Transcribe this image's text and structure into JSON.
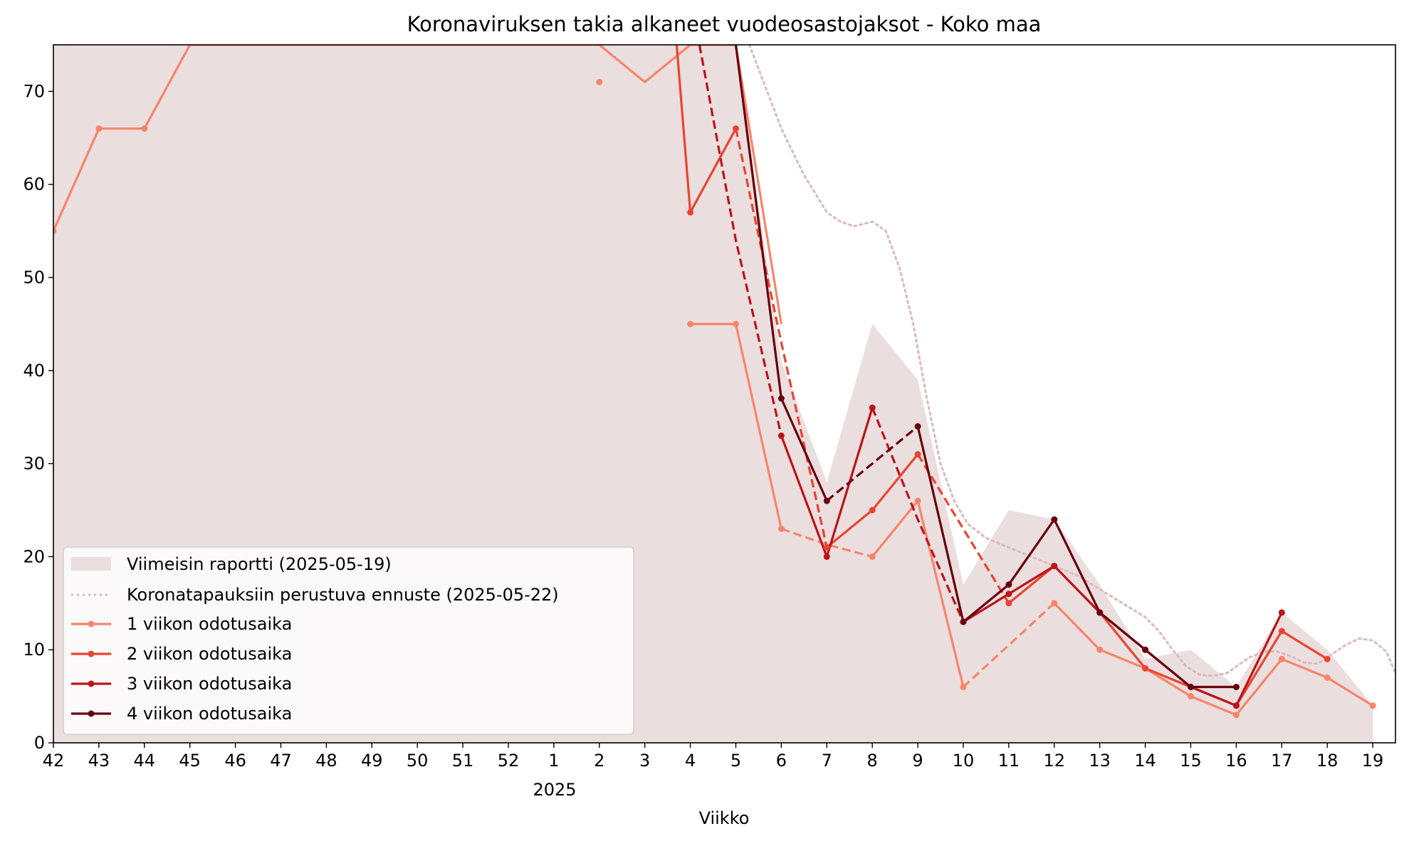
{
  "chart_data": {
    "type": "line",
    "title": "Koronaviruksen takia alkaneet vuodeosastojaksot - Koko maa",
    "xlabel": "Viikko",
    "ylabel": "",
    "x_ticks": [
      "42",
      "43",
      "44",
      "45",
      "46",
      "47",
      "48",
      "49",
      "50",
      "51",
      "52",
      "1",
      "2",
      "3",
      "4",
      "5",
      "6",
      "7",
      "8",
      "9",
      "10",
      "11",
      "12",
      "13",
      "14",
      "15",
      "16",
      "17",
      "18",
      "19"
    ],
    "x_year_label": "2025",
    "y_ticks": [
      0,
      10,
      20,
      30,
      40,
      50,
      60,
      70
    ],
    "xlim": [
      0,
      29.5
    ],
    "ylim": [
      0,
      75
    ],
    "grid": false,
    "legend_position": "lower-left",
    "report_area": {
      "name": "Viimeisin raportti (2025-05-19)",
      "color": "#ebdedf",
      "x": [
        0,
        1,
        2,
        3,
        4,
        5,
        6,
        7,
        8,
        9,
        10,
        11,
        12,
        13,
        14,
        15,
        16,
        17,
        18,
        19,
        20,
        21,
        22,
        23,
        24,
        25,
        26,
        27,
        28,
        29
      ],
      "values": [
        75,
        75,
        75,
        75,
        75,
        75,
        75,
        75,
        75,
        75,
        75,
        75,
        75,
        75,
        75,
        75,
        41,
        28,
        45,
        39,
        17,
        25,
        24,
        17,
        9,
        10,
        6,
        14,
        10,
        4
      ]
    },
    "forecast": {
      "name": "Koronatapauksiin perustuva ennuste (2025-05-22)",
      "color": "#dbb9bc",
      "x": [
        15.3,
        16,
        16.5,
        17,
        17.3,
        17.6,
        18,
        18.3,
        18.6,
        18.9,
        19.2,
        19.5,
        19.8,
        20.1,
        20.5,
        21,
        21.5,
        22,
        22.5,
        23,
        23.5,
        24,
        24.3,
        24.6,
        24.9,
        25.2,
        25.5,
        25.8,
        26,
        26.3,
        26.6,
        26.9,
        27.2,
        27.5,
        27.8,
        28.1,
        28.4,
        28.7,
        29,
        29.3,
        29.5
      ],
      "values": [
        75,
        66,
        61,
        57,
        56,
        55.5,
        56,
        55,
        51,
        45,
        37,
        30,
        26,
        23.5,
        22,
        21,
        20,
        19,
        18,
        16.5,
        15,
        13.5,
        12,
        10,
        8.2,
        7.3,
        7.2,
        7.5,
        8.2,
        9.2,
        9.8,
        9.8,
        9.3,
        8.6,
        8.5,
        9.5,
        10.5,
        11.2,
        11,
        9.8,
        7.5
      ]
    },
    "series": [
      {
        "name": "1 viikon odotusaika",
        "color": "#f7856a",
        "segments": [
          {
            "style": "solid",
            "x": [
              0,
              1,
              2,
              3,
              12,
              13,
              14,
              15,
              16
            ],
            "values": [
              55,
              66,
              66,
              75,
              75,
              71,
              75,
              75,
              45
            ]
          },
          {
            "style": "solid",
            "x": [
              14,
              15,
              16
            ],
            "values": [
              45,
              45,
              23
            ]
          },
          {
            "style": "dashed",
            "x": [
              16,
              17,
              18
            ],
            "values": [
              23,
              21.3,
              20
            ]
          },
          {
            "style": "solid",
            "x": [
              18,
              19,
              20
            ],
            "values": [
              20,
              26,
              6
            ]
          },
          {
            "style": "dashed",
            "x": [
              20,
              21,
              22
            ],
            "values": [
              6,
              10.5,
              15
            ]
          },
          {
            "style": "solid",
            "x": [
              22,
              23,
              24,
              25,
              26,
              27,
              28,
              29
            ],
            "values": [
              15,
              10,
              8,
              5,
              3,
              9,
              7,
              4
            ]
          }
        ],
        "markers_x": [
          0,
          1,
          2,
          12,
          14,
          15,
          16,
          18,
          19,
          20,
          22,
          23,
          24,
          25,
          26,
          27,
          28,
          29
        ],
        "markers_values": [
          55,
          66,
          66,
          71,
          45,
          45,
          23,
          20,
          26,
          6,
          15,
          10,
          8,
          5,
          3,
          9,
          7,
          4
        ]
      },
      {
        "name": "2 viikon odotusaika",
        "color": "#ea4430",
        "segments": [
          {
            "style": "solid",
            "x": [
              13.7,
              14,
              15
            ],
            "values": [
              75,
              57,
              66
            ]
          },
          {
            "style": "dashed",
            "x": [
              15,
              16,
              17
            ],
            "values": [
              66,
              43,
              21
            ]
          },
          {
            "style": "solid",
            "x": [
              17,
              18,
              19
            ],
            "values": [
              21,
              25,
              31
            ]
          },
          {
            "style": "dashed",
            "x": [
              19,
              20,
              21
            ],
            "values": [
              31,
              23,
              15
            ]
          },
          {
            "style": "solid",
            "x": [
              21,
              22,
              23,
              24,
              25,
              26,
              27,
              28
            ],
            "values": [
              15,
              19,
              14,
              8,
              6,
              4,
              12,
              9
            ]
          }
        ],
        "markers_x": [
          14,
          15,
          17,
          18,
          19,
          21,
          22,
          23,
          24,
          25,
          26,
          27,
          28
        ],
        "markers_values": [
          57,
          66,
          21,
          25,
          31,
          15,
          19,
          14,
          8,
          6,
          4,
          12,
          9
        ]
      },
      {
        "name": "3 viikon odotusaika",
        "color": "#bc141a",
        "segments": [
          {
            "style": "dashed",
            "x": [
              14.2,
              15,
              16
            ],
            "values": [
              75,
              54,
              33
            ]
          },
          {
            "style": "solid",
            "x": [
              16,
              17,
              18
            ],
            "values": [
              33,
              20,
              36
            ]
          },
          {
            "style": "dashed",
            "x": [
              18,
              19,
              20
            ],
            "values": [
              36,
              24,
              13
            ]
          },
          {
            "style": "solid",
            "x": [
              20,
              21,
              22,
              23,
              24,
              25,
              26,
              27
            ],
            "values": [
              13,
              16,
              19,
              14,
              10,
              6,
              4,
              14
            ]
          }
        ],
        "markers_x": [
          16,
          17,
          18,
          20,
          21,
          22,
          23,
          24,
          25,
          26,
          27
        ],
        "markers_values": [
          33,
          20,
          36,
          13,
          16,
          19,
          14,
          10,
          6,
          4,
          14
        ]
      },
      {
        "name": "4 viikon odotusaika",
        "color": "#67000d",
        "segments": [
          {
            "style": "solid",
            "x": [
              15,
              16,
              17
            ],
            "values": [
              75,
              37,
              26
            ]
          },
          {
            "style": "dashed",
            "x": [
              17,
              18,
              19
            ],
            "values": [
              26,
              30,
              34
            ]
          },
          {
            "style": "solid",
            "x": [
              19,
              20,
              21,
              22,
              23,
              24,
              25,
              26
            ],
            "values": [
              34,
              13,
              17,
              24,
              14,
              10,
              6,
              6
            ]
          }
        ],
        "markers_x": [
          16,
          17,
          19,
          20,
          21,
          22,
          23,
          24,
          25,
          26
        ],
        "markers_values": [
          37,
          26,
          34,
          13,
          17,
          24,
          14,
          10,
          6,
          6
        ]
      }
    ]
  }
}
